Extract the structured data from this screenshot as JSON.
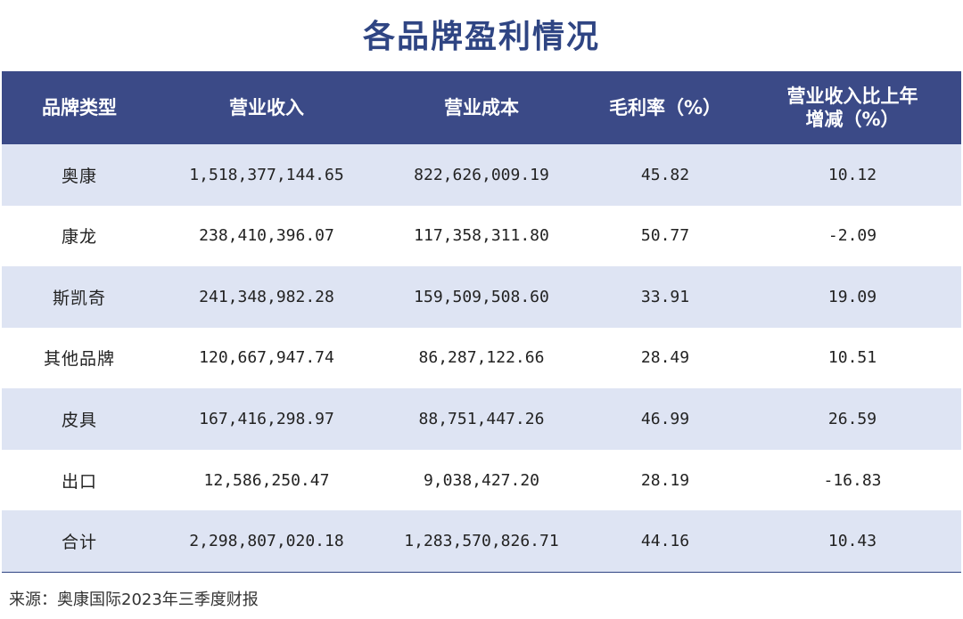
{
  "title": "各品牌盈利情况",
  "table": {
    "headers": [
      "品牌类型",
      "营业收入",
      "营业成本",
      "毛利率（%）",
      "营业收入比上年\n增减（%）"
    ],
    "rows": [
      [
        "奥康",
        "1,518,377,144.65",
        "822,626,009.19",
        "45.82",
        "10.12"
      ],
      [
        "康龙",
        "238,410,396.07",
        "117,358,311.80",
        "50.77",
        "-2.09"
      ],
      [
        "斯凯奇",
        "241,348,982.28",
        "159,509,508.60",
        "33.91",
        "19.09"
      ],
      [
        "其他品牌",
        "120,667,947.74",
        "86,287,122.66",
        "28.49",
        "10.51"
      ],
      [
        "皮具",
        "167,416,298.97",
        "88,751,447.26",
        "46.99",
        "26.59"
      ],
      [
        "出口",
        "12,586,250.47",
        "9,038,427.20",
        "28.19",
        "-16.83"
      ],
      [
        "合计",
        "2,298,807,020.18",
        "1,283,570,826.71",
        "44.16",
        "10.43"
      ]
    ]
  },
  "source": "来源：奥康国际2023年三季度财报",
  "colors": {
    "header_bg": "#3b4a87",
    "alt_row_bg": "#dee4f3",
    "title": "#2f4583"
  }
}
